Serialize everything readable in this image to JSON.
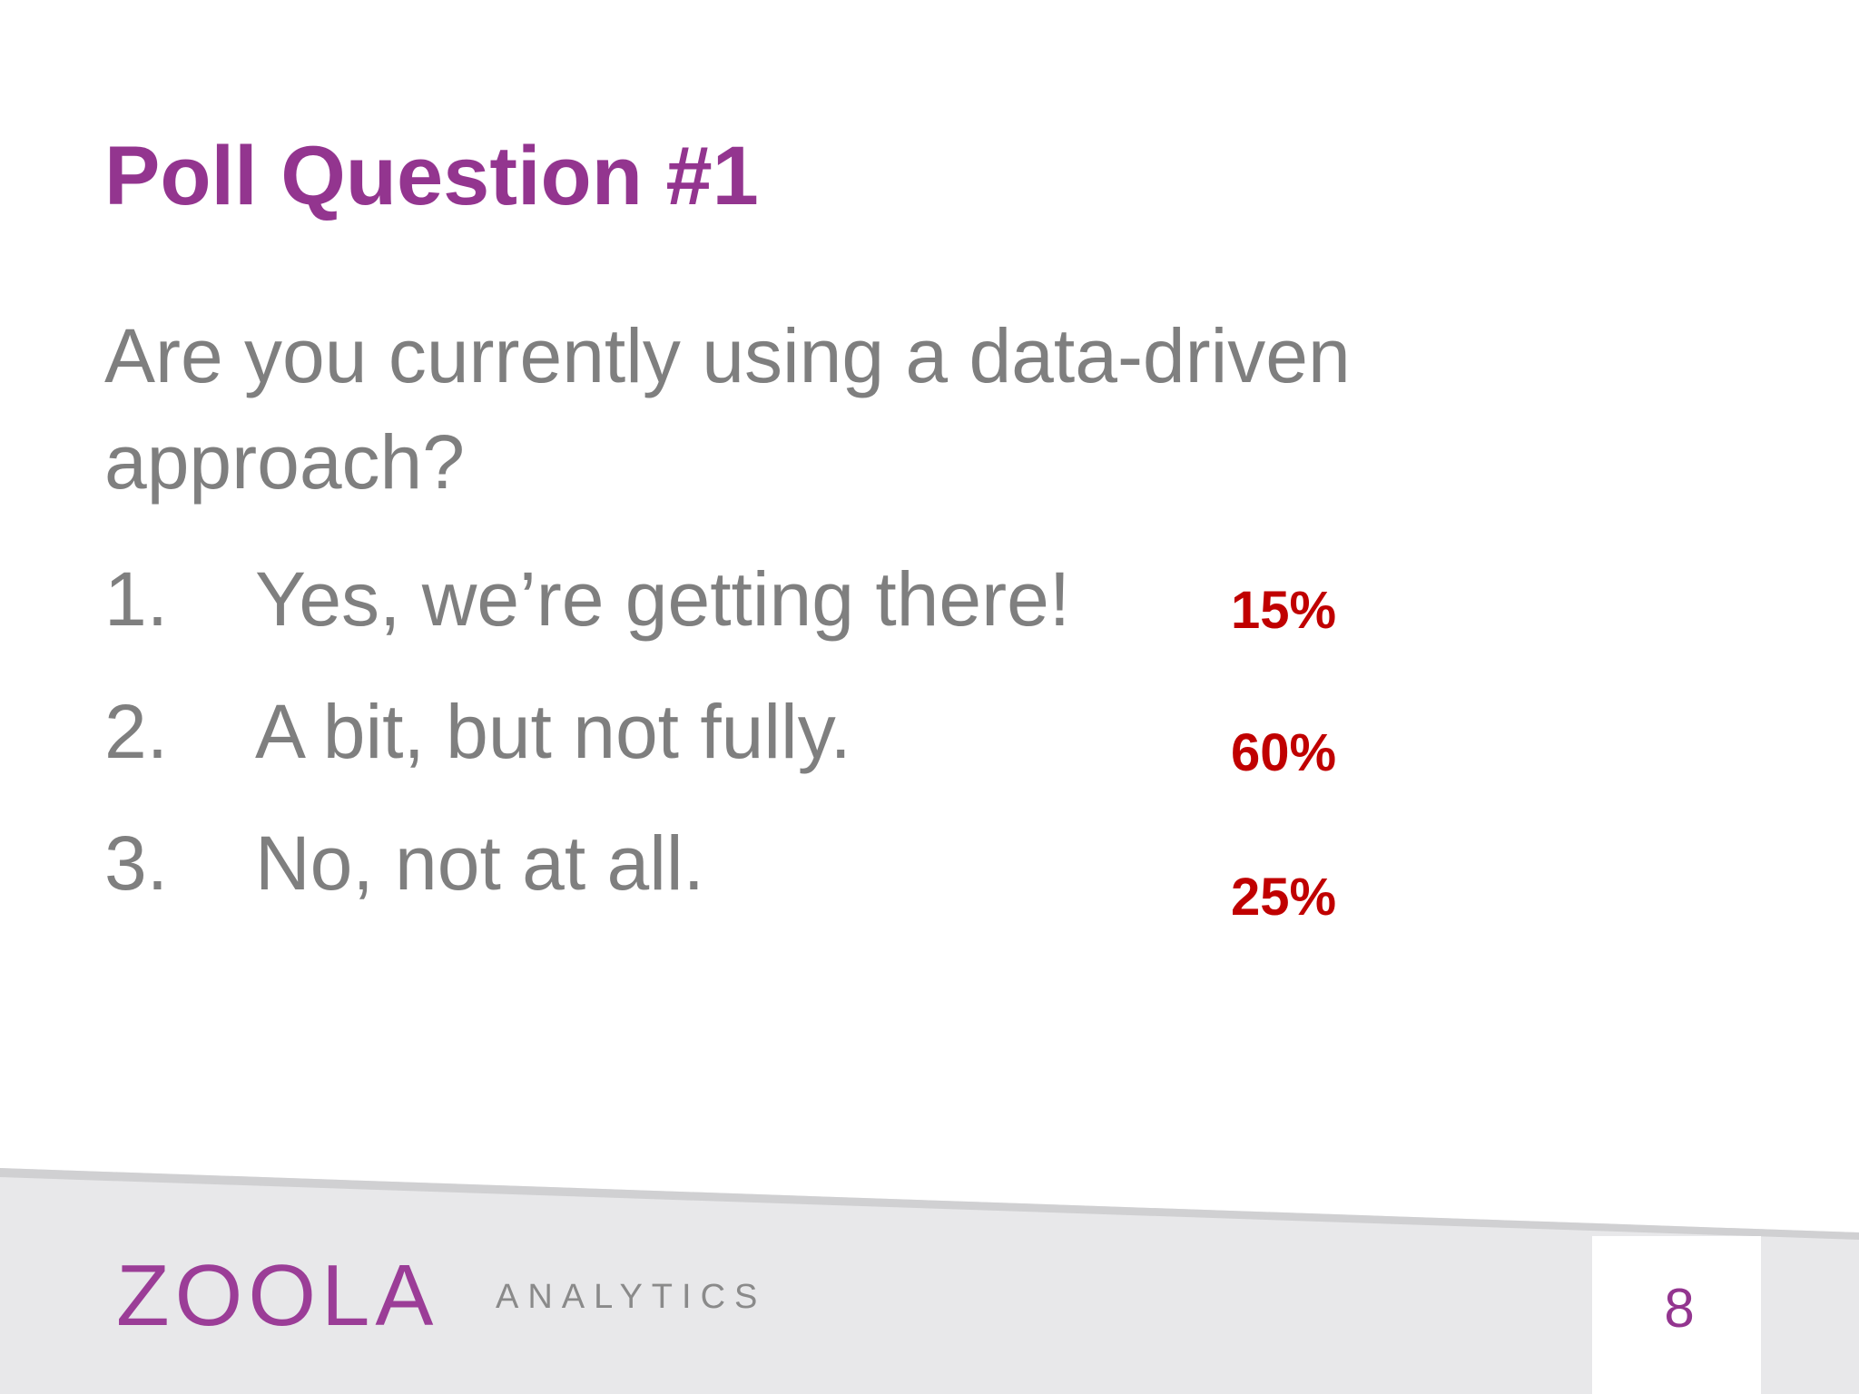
{
  "title": "Poll Question #1",
  "question": [
    "Are you currently using a data-driven",
    "approach?"
  ],
  "options": [
    {
      "number": "1.",
      "text": "Yes, we’re getting there!",
      "result": "15%"
    },
    {
      "number": "2.",
      "text": "A bit, but not fully.",
      "result": "60%"
    },
    {
      "number": "3.",
      "text": "No, not at all.",
      "result": "25%"
    }
  ],
  "footer": {
    "logo": "ZOOLA",
    "logo_sub": "ANALYTICS",
    "page_number": "8"
  }
}
